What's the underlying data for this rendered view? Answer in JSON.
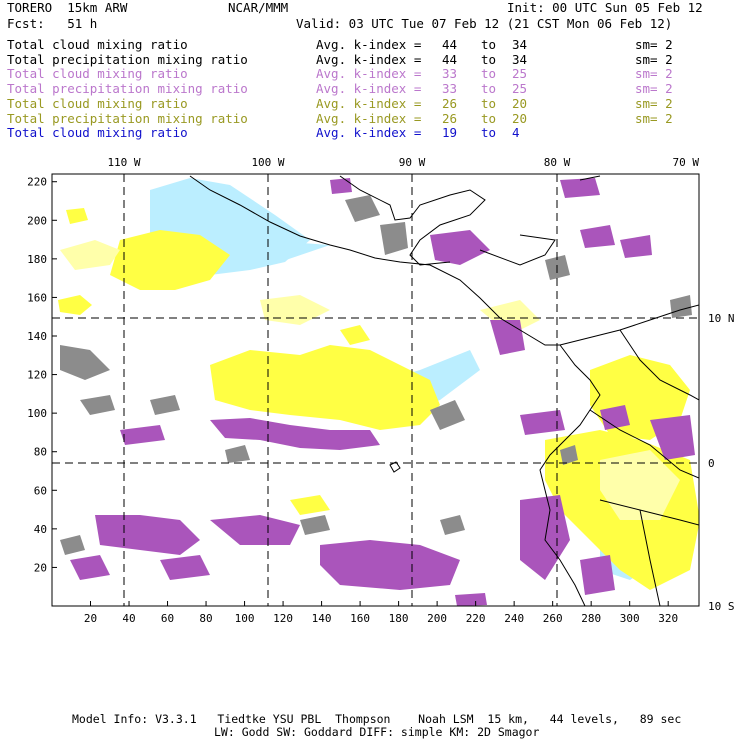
{
  "header": {
    "model": "TORERO  15km ARW",
    "org": "NCAR/MMM",
    "init": "Init: 00 UTC Sun 05 Feb 12",
    "fcst": "Fcst:   51 h",
    "valid": "Valid: 03 UTC Tue 07 Feb 12 (21 CST Mon 06 Feb 12)"
  },
  "legend": [
    {
      "name": "Total cloud mixing ratio",
      "kindex": "Avg. k-index =",
      "from": "44",
      "to_word": "to",
      "to": "34",
      "sm": "sm= 2",
      "color": "#000000"
    },
    {
      "name": "Total precipitation mixing ratio",
      "kindex": "Avg. k-index =",
      "from": "44",
      "to_word": "to",
      "to": "34",
      "sm": "sm= 2",
      "color": "#000000"
    },
    {
      "name": "Total cloud mixing ratio",
      "kindex": "Avg. k-index =",
      "from": "33",
      "to_word": "to",
      "to": "25",
      "sm": "sm= 2",
      "color": "#bb77cc"
    },
    {
      "name": "Total precipitation mixing ratio",
      "kindex": "Avg. k-index =",
      "from": "33",
      "to_word": "to",
      "to": "25",
      "sm": "sm= 2",
      "color": "#bb77cc"
    },
    {
      "name": "Total cloud mixing ratio",
      "kindex": "Avg. k-index =",
      "from": "26",
      "to_word": "to",
      "to": "20",
      "sm": "sm= 2",
      "color": "#999922"
    },
    {
      "name": "Total precipitation mixing ratio",
      "kindex": "Avg. k-index =",
      "from": "26",
      "to_word": "to",
      "to": "20",
      "sm": "sm= 2",
      "color": "#999922"
    },
    {
      "name": "Total cloud mixing ratio",
      "kindex": "Avg. k-index =",
      "from": "19",
      "to_word": "to",
      "to": "4",
      "sm": "",
      "color": "#1111cc"
    }
  ],
  "map": {
    "lon_labels": [
      "110 W",
      "100 W",
      "90 W",
      "80 W",
      "70 W"
    ],
    "lat_labels": [
      "10 N",
      "0",
      "10 S"
    ],
    "x_ticks": [
      "20",
      "40",
      "60",
      "80",
      "100",
      "120",
      "140",
      "160",
      "180",
      "200",
      "220",
      "240",
      "260",
      "280",
      "300",
      "320"
    ],
    "y_ticks": [
      "20",
      "40",
      "60",
      "80",
      "100",
      "120",
      "140",
      "160",
      "180",
      "200",
      "220"
    ],
    "field_colors": {
      "gray": "#8c8c8c",
      "purple": "#aa55bb",
      "yellow": "#ffff44",
      "light_yellow": "#ffffaa",
      "light_blue": "#bbeeff"
    }
  },
  "footer": {
    "line1": "Model Info: V3.3.1   Tiedtke YSU PBL  Thompson    Noah LSM  15 km,   44 levels,   89 sec",
    "line2": "LW: Godd SW: Goddard DIFF: simple KM: 2D Smagor"
  }
}
